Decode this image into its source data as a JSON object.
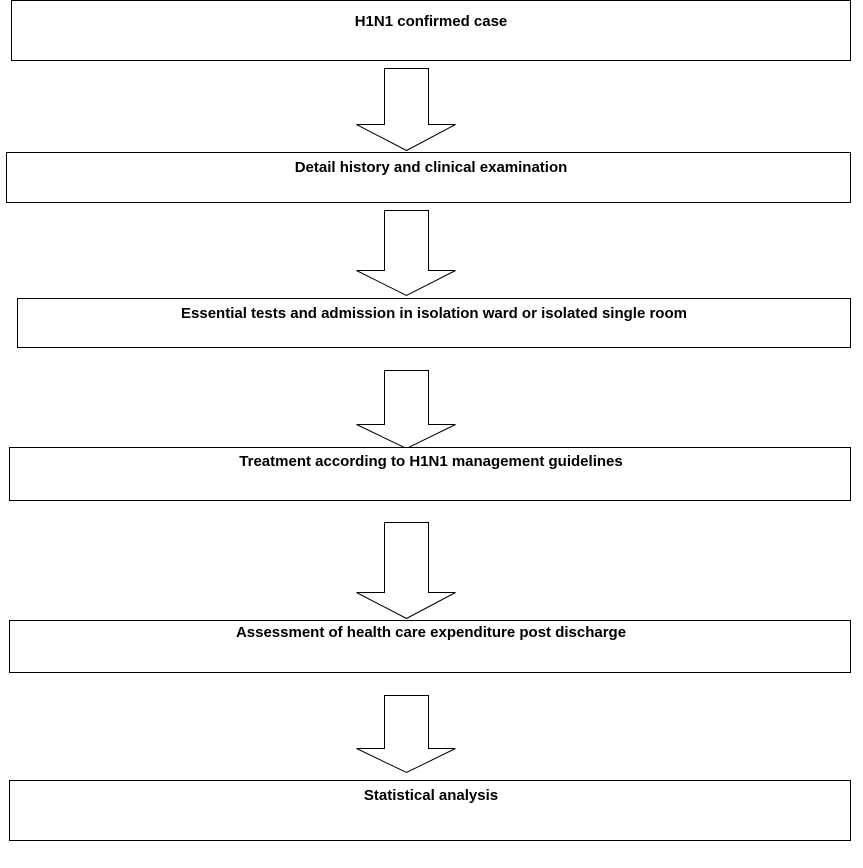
{
  "nodes": [
    {
      "label": "H1N1 confirmed case"
    },
    {
      "label": "Detail history and clinical examination"
    },
    {
      "label": "Essential tests and admission in isolation ward or isolated single room"
    },
    {
      "label": "Treatment according to H1N1 management guidelines"
    },
    {
      "label": "Assessment of health care expenditure post discharge"
    },
    {
      "label": "Statistical analysis"
    }
  ]
}
